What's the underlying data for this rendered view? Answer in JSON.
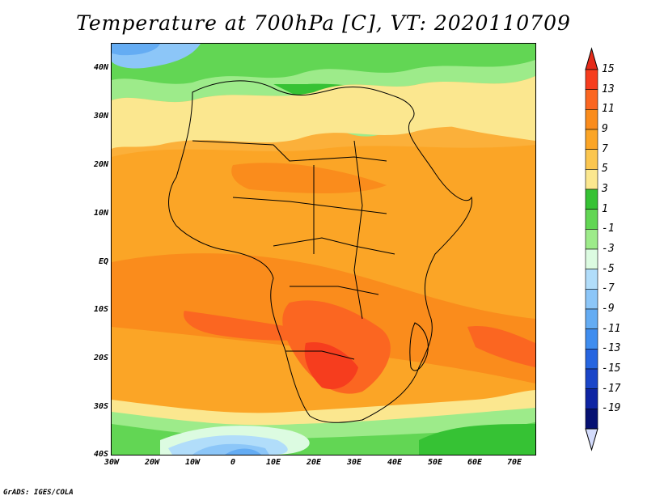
{
  "title": "Temperature at 700hPa [C], VT: 2020110709",
  "credit": "GrADS: IGES/COLA",
  "map": {
    "lat_labels": [
      "40N",
      "30N",
      "20N",
      "10N",
      "EQ",
      "10S",
      "20S",
      "30S",
      "40S"
    ],
    "lon_labels": [
      "30W",
      "20W",
      "10W",
      "0",
      "10E",
      "20E",
      "30E",
      "40E",
      "50E",
      "60E",
      "70E"
    ],
    "lon_range": [
      -30,
      75
    ],
    "lat_range": [
      -40,
      45
    ]
  },
  "colorbar": {
    "labels": [
      "15",
      "13",
      "11",
      "9",
      "7",
      "5",
      "3",
      "1",
      "-1",
      "-3",
      "-5",
      "-7",
      "-9",
      "-11",
      "-13",
      "-15",
      "-17",
      "-19"
    ],
    "colors": [
      "#f63d1e",
      "#fb6621",
      "#fa8c1c",
      "#fba526",
      "#fbc64f",
      "#fbe78f",
      "#36c234",
      "#62d654",
      "#9deb8a",
      "#dcfbe1",
      "#b1ddfa",
      "#8cc6f8",
      "#64acf3",
      "#3f8def",
      "#2665e0",
      "#1a45c8",
      "#0e24a3",
      "#061172"
    ],
    "top_arrow_color": "#e52b1a",
    "bottom_arrow_color": "#d4dcfc"
  }
}
